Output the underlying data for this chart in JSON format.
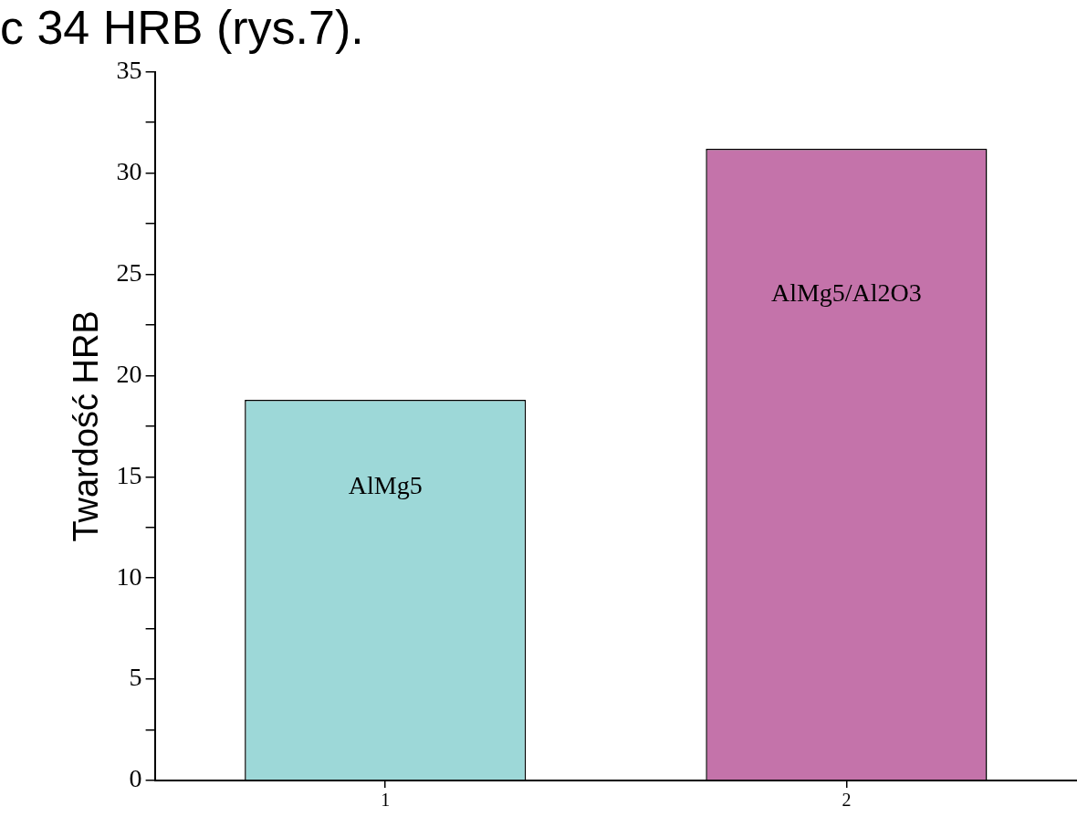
{
  "chart_data": {
    "type": "bar",
    "ylabel": "Twardość HRB",
    "categories": [
      "1",
      "2"
    ],
    "values": [
      18.8,
      31.2
    ],
    "colors": [
      "#9dd8d8",
      "#c473aa"
    ],
    "ylim": [
      0,
      35
    ],
    "yticks": [
      0,
      {
        "value": 2.5,
        "label": null
      },
      5,
      {
        "value": 7.5,
        "label": null
      },
      10,
      {
        "value": 12.5,
        "label": null
      },
      15,
      {
        "value": 17.5,
        "label": null
      },
      20,
      {
        "value": 22.5,
        "label": null
      },
      25,
      {
        "value": 27.5,
        "label": null
      },
      30,
      {
        "value": 32.5,
        "label": null
      },
      35
    ],
    "grid": false,
    "legend": false,
    "annotations": [
      "c 34 HRB (rys.7).",
      "AlMg5",
      "AlMg5/Al2O3"
    ]
  }
}
